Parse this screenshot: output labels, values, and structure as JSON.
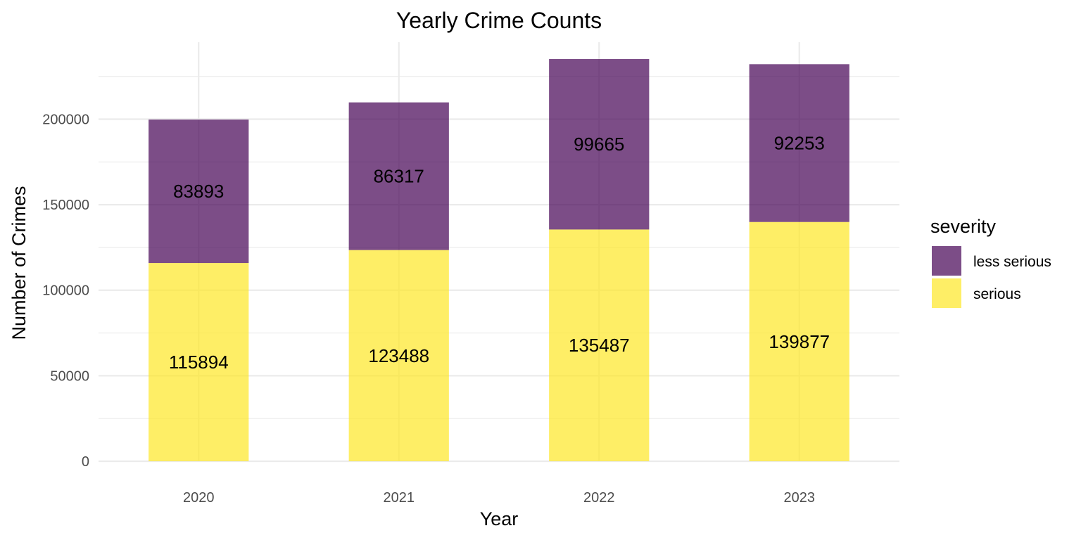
{
  "chart_data": {
    "type": "bar",
    "stacked": true,
    "title": "Yearly Crime Counts",
    "xlabel": "Year",
    "ylabel": "Number of Crimes",
    "categories": [
      "2020",
      "2021",
      "2022",
      "2023"
    ],
    "series": [
      {
        "name": "serious",
        "values": [
          115894,
          123488,
          135487,
          139877
        ],
        "color": "#fde725"
      },
      {
        "name": "less serious",
        "values": [
          83893,
          86317,
          99665,
          92253
        ],
        "color": "#440154"
      }
    ],
    "yticks": [
      0,
      50000,
      100000,
      150000,
      200000
    ],
    "ylim": [
      0,
      245000
    ],
    "grid": true,
    "bar_opacity": 0.7,
    "legend": {
      "title": "severity",
      "position": "right",
      "items": [
        {
          "label": "less serious",
          "color": "#440154"
        },
        {
          "label": "serious",
          "color": "#fde725"
        }
      ]
    }
  }
}
